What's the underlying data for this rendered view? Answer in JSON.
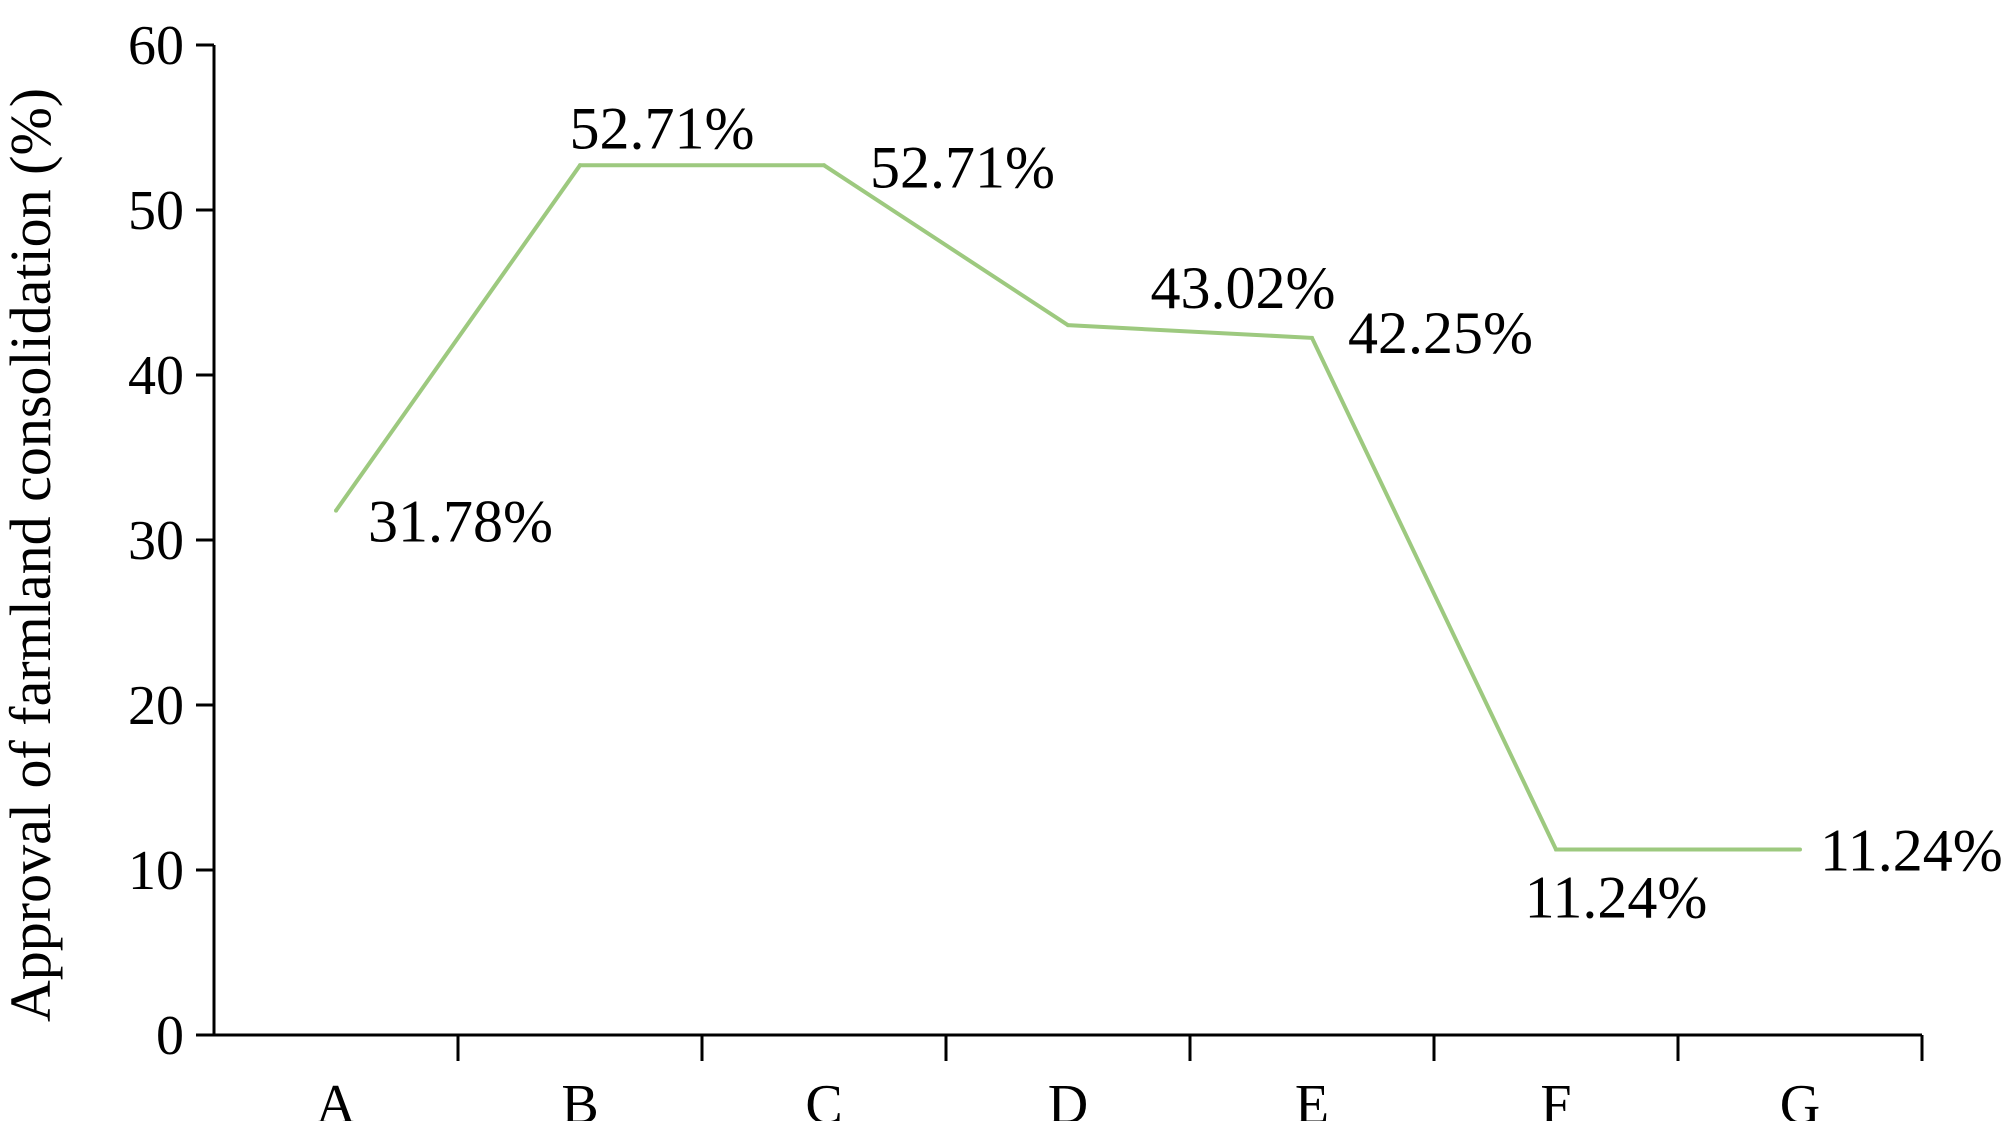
{
  "chart_data": {
    "type": "line",
    "title": "",
    "xlabel": "",
    "ylabel": "Approval of farmland consolidation (%)",
    "categories": [
      "A",
      "B",
      "C",
      "D",
      "E",
      "F",
      "G"
    ],
    "series": [
      {
        "values": [
          31.78,
          52.71,
          52.71,
          43.02,
          42.25,
          11.24,
          11.24
        ],
        "color": "#9dc97f"
      }
    ],
    "data_labels": [
      "31.78%",
      "52.71%",
      "52.71%",
      "43.02%",
      "42.25%",
      "11.24%",
      "11.24%"
    ],
    "ylim": [
      0,
      60
    ],
    "yticks": [
      0,
      10,
      20,
      30,
      40,
      50,
      60
    ],
    "ytick_labels": [
      "0",
      "10",
      "20",
      "30",
      "40",
      "50",
      "60"
    ],
    "grid": false,
    "legend": "none"
  }
}
